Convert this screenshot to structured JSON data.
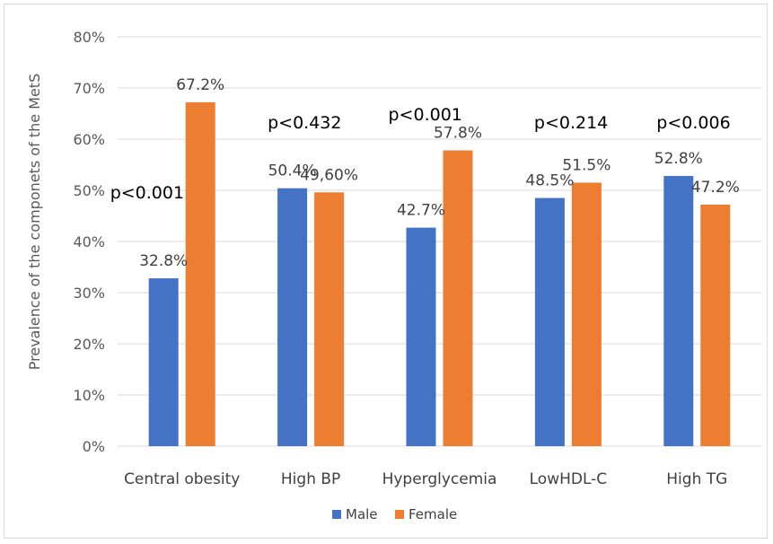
{
  "chart_data": {
    "type": "bar",
    "title": "",
    "xlabel": "",
    "ylabel": "Prevalence of the componets of the  MetS",
    "ylim": [
      0,
      80
    ],
    "yticks": [
      "0%",
      "10%",
      "20%",
      "30%",
      "40%",
      "50%",
      "60%",
      "70%",
      "80%"
    ],
    "grid": true,
    "legend_position": "bottom",
    "categories": [
      "Central obesity",
      "High BP",
      "Hyperglycemia",
      "LowHDL-C",
      "High TG"
    ],
    "series": [
      {
        "name": "Male",
        "color": "#4472C4",
        "values": [
          32.8,
          50.4,
          42.7,
          48.5,
          52.8
        ],
        "labels": [
          "32.8%",
          "50.4%",
          "42.7%",
          "48.5%",
          "52.8%"
        ]
      },
      {
        "name": "Female",
        "color": "#ED7D31",
        "values": [
          67.2,
          49.6,
          57.8,
          51.5,
          47.2
        ],
        "labels": [
          "67.2%",
          "49,60%",
          "57.8%",
          "51.5%",
          "47.2%"
        ]
      }
    ],
    "annotations": [
      "p<0.001",
      "p<0.432",
      "p<0.001",
      "p<0.214",
      "p<0.006"
    ]
  }
}
